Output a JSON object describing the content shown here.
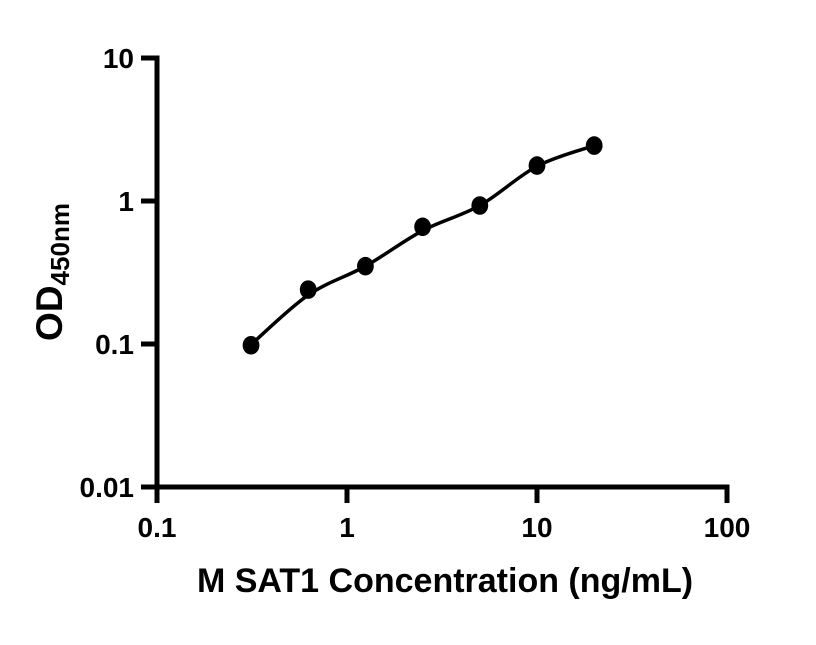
{
  "figure": {
    "background_color": "#ffffff",
    "axis_color": "#000000"
  },
  "chart_data": {
    "type": "scatter",
    "title": "",
    "xlabel": "M SAT1 Concentration (ng/mL)",
    "ylabel_main": "OD",
    "ylabel_sub": "450nm",
    "x_scale": "log",
    "y_scale": "log",
    "xlim": [
      0.1,
      100
    ],
    "ylim": [
      0.01,
      10
    ],
    "grid": false,
    "legend": "none",
    "marker_color": "#000000",
    "line_color": "#000000",
    "x_ticks": [
      {
        "value": 0.1,
        "label": "0.1"
      },
      {
        "value": 1,
        "label": "1"
      },
      {
        "value": 10,
        "label": "10"
      },
      {
        "value": 100,
        "label": "100"
      }
    ],
    "y_ticks": [
      {
        "value": 10,
        "label": "10"
      },
      {
        "value": 1,
        "label": "1"
      },
      {
        "value": 0.1,
        "label": "0.1"
      },
      {
        "value": 0.01,
        "label": "0.01"
      }
    ],
    "points": [
      {
        "concentration_ng_ml": 0.3125,
        "od": 0.098
      },
      {
        "concentration_ng_ml": 0.625,
        "od": 0.24
      },
      {
        "concentration_ng_ml": 1.25,
        "od": 0.35
      },
      {
        "concentration_ng_ml": 2.5,
        "od": 0.66
      },
      {
        "concentration_ng_ml": 5,
        "od": 0.93
      },
      {
        "concentration_ng_ml": 10,
        "od": 1.77
      },
      {
        "concentration_ng_ml": 20,
        "od": 2.44
      }
    ],
    "fit_curve": {
      "x": [
        0.3125,
        0.625,
        1.25,
        2.5,
        5,
        10,
        20
      ],
      "od": [
        0.099,
        0.22,
        0.35,
        0.62,
        0.93,
        1.75,
        2.44
      ]
    }
  }
}
